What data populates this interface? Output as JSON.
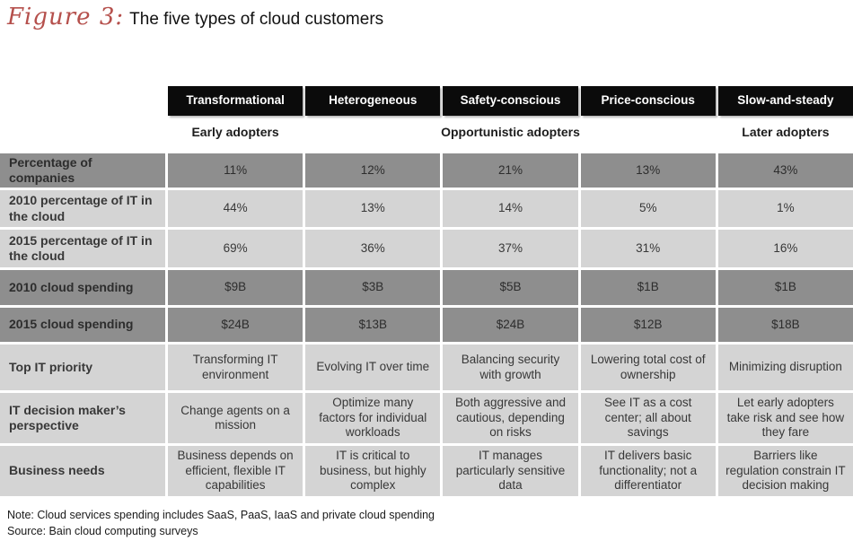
{
  "title": {
    "figure_label": "Figure 3:",
    "text": "The five types of cloud customers"
  },
  "table": {
    "column_headers": [
      "Transformational",
      "Heterogeneous",
      "Safety-conscious",
      "Price-conscious",
      "Slow-and-steady"
    ],
    "adopter_groups": {
      "early": "Early adopters",
      "opportunistic": "Opportunistic adopters",
      "later": "Later adopters"
    },
    "rows": [
      {
        "label": "Percentage of companies",
        "values": [
          "11%",
          "12%",
          "21%",
          "13%",
          "43%"
        ]
      },
      {
        "label": "2010 percentage of IT in the cloud",
        "values": [
          "44%",
          "13%",
          "14%",
          "5%",
          "1%"
        ]
      },
      {
        "label": "2015 percentage of IT in the cloud",
        "values": [
          "69%",
          "36%",
          "37%",
          "31%",
          "16%"
        ]
      },
      {
        "label": "2010 cloud spending",
        "values": [
          "$9B",
          "$3B",
          "$5B",
          "$1B",
          "$1B"
        ]
      },
      {
        "label": "2015 cloud spending",
        "values": [
          "$24B",
          "$13B",
          "$24B",
          "$12B",
          "$18B"
        ]
      },
      {
        "label": "Top IT priority",
        "values": [
          "Transforming IT environment",
          "Evolving IT over time",
          "Balancing security with growth",
          "Lowering total cost of ownership",
          "Minimizing disruption"
        ]
      },
      {
        "label": "IT decision maker’s perspective",
        "values": [
          "Change agents on a mission",
          "Optimize many factors for individual workloads",
          "Both aggressive and cautious, depending on risks",
          "See IT as a cost center; all about savings",
          "Let early adopters take risk and see how they fare"
        ]
      },
      {
        "label": "Business needs",
        "values": [
          "Business depends on efficient, flexible IT capabilities",
          "IT is critical to business, but highly complex",
          "IT manages particularly sensitive data",
          "IT delivers basic functionality; not a differentiator",
          "Barriers like regulation constrain IT decision making"
        ]
      }
    ]
  },
  "footer": {
    "note": "Note: Cloud services spending includes SaaS, PaaS, IaaS and private cloud spending",
    "source": "Source: Bain cloud computing surveys"
  },
  "colors": {
    "accent_red": "#b5504c",
    "header_bg": "#0b0b0b",
    "dark_cell": "#8e8e8e",
    "light_cell": "#d4d4d4"
  },
  "chart_data": {
    "type": "table",
    "title": "Figure 3: The five types of cloud customers",
    "columns": [
      "Transformational",
      "Heterogeneous",
      "Safety-conscious",
      "Price-conscious",
      "Slow-and-steady"
    ],
    "adopter_segments": [
      {
        "label": "Early adopters",
        "columns": [
          "Transformational"
        ]
      },
      {
        "label": "Opportunistic adopters",
        "columns": [
          "Heterogeneous",
          "Safety-conscious",
          "Price-conscious"
        ]
      },
      {
        "label": "Later adopters",
        "columns": [
          "Slow-and-steady"
        ]
      }
    ],
    "rows": [
      {
        "metric": "Percentage of companies",
        "values": [
          "11%",
          "12%",
          "21%",
          "13%",
          "43%"
        ]
      },
      {
        "metric": "2010 percentage of IT in the cloud",
        "values": [
          "44%",
          "13%",
          "14%",
          "5%",
          "1%"
        ]
      },
      {
        "metric": "2015 percentage of IT in the cloud",
        "values": [
          "69%",
          "36%",
          "37%",
          "31%",
          "16%"
        ]
      },
      {
        "metric": "2010 cloud spending",
        "values": [
          "$9B",
          "$3B",
          "$5B",
          "$1B",
          "$1B"
        ]
      },
      {
        "metric": "2015 cloud spending",
        "values": [
          "$24B",
          "$13B",
          "$24B",
          "$12B",
          "$18B"
        ]
      },
      {
        "metric": "Top IT priority",
        "values": [
          "Transforming IT environment",
          "Evolving IT over time",
          "Balancing security with growth",
          "Lowering total cost of ownership",
          "Minimizing disruption"
        ]
      },
      {
        "metric": "IT decision maker’s perspective",
        "values": [
          "Change agents on a mission",
          "Optimize many factors for individual workloads",
          "Both aggressive and cautious, depending on risks",
          "See IT as a cost center; all about savings",
          "Let early adopters take risk and see how they fare"
        ]
      },
      {
        "metric": "Business needs",
        "values": [
          "Business depends on efficient, flexible IT capabilities",
          "IT is critical to business, but highly complex",
          "IT manages particularly sensitive data",
          "IT delivers basic functionality; not a differentiator",
          "Barriers like regulation constrain IT decision making"
        ]
      }
    ],
    "note": "Note: Cloud services spending includes SaaS, PaaS, IaaS and private cloud spending",
    "source": "Source: Bain cloud computing surveys"
  }
}
